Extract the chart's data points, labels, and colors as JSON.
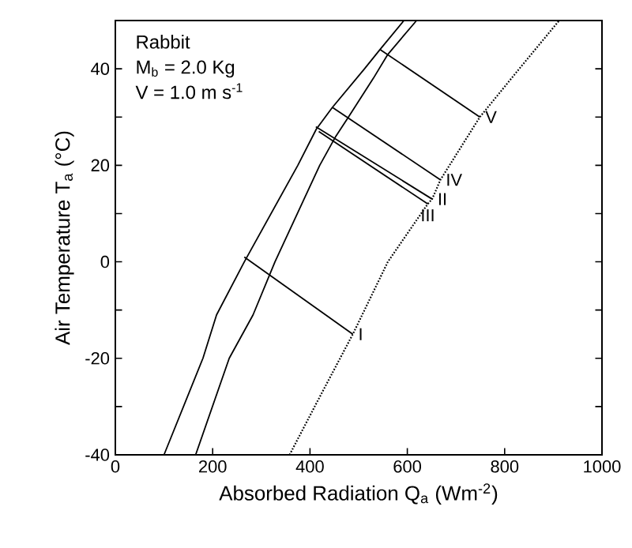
{
  "chart_data": {
    "type": "line",
    "xlabel": "Absorbed Radiation Q$_{a}$ (Wm$^{-2}$)",
    "ylabel": "Air Temperature T$_{a}$ (°C)",
    "annotations": [
      "Rabbit",
      "M$_{b}$ = 2.0 Kg",
      "V = 1.0 m s$^{-1}$"
    ],
    "xlim": [
      0,
      1000
    ],
    "ylim": [
      -40,
      50
    ],
    "xticks": [
      0,
      200,
      400,
      600,
      800,
      1000
    ],
    "yticks": [
      -40,
      {
        "value": -30,
        "label": null
      },
      -20,
      {
        "value": -10,
        "label": null
      },
      0,
      {
        "value": 10,
        "label": null
      },
      20,
      {
        "value": 30,
        "label": null
      },
      40
    ],
    "grid": false,
    "legend": false,
    "marker": "none",
    "series": [
      {
        "color": "#000000",
        "line_style": "solid",
        "x": [
          100,
          180,
          208,
          265,
          375,
          413,
          446,
          512,
          544,
          593
        ],
        "values": [
          -40,
          -20,
          -11,
          0,
          20,
          27.5,
          32,
          40,
          44,
          50
        ]
      },
      {
        "color": "#000000",
        "line_style": "solid",
        "x": [
          165,
          234,
          283,
          328,
          420,
          453,
          479,
          530,
          560,
          619
        ],
        "values": [
          -40,
          -20,
          -11,
          0,
          20,
          26,
          30,
          38,
          43,
          50
        ]
      },
      {
        "color": "#000000",
        "line_style": "dotted",
        "x": [
          358,
          420,
          488,
          560,
          642,
          651,
          668,
          749,
          830,
          912
        ],
        "values": [
          -40,
          -28,
          -15,
          0,
          12,
          13,
          17,
          30,
          40,
          50
        ]
      },
      {
        "name": "I",
        "color": "#000000",
        "line_style": "solid",
        "x": [
          265,
          488
        ],
        "values": [
          1,
          -15
        ]
      },
      {
        "name": "II",
        "color": "#000000",
        "line_style": "solid",
        "x": [
          412,
          651
        ],
        "values": [
          28,
          13
        ]
      },
      {
        "name": "III",
        "color": "#000000",
        "line_style": "solid",
        "x": [
          418,
          642
        ],
        "values": [
          27,
          12
        ]
      },
      {
        "name": "IV",
        "color": "#000000",
        "line_style": "solid",
        "x": [
          446,
          668
        ],
        "values": [
          32,
          17
        ]
      },
      {
        "name": "V",
        "color": "#000000",
        "line_style": "solid",
        "x": [
          544,
          749
        ],
        "values": [
          44,
          30
        ]
      }
    ]
  }
}
